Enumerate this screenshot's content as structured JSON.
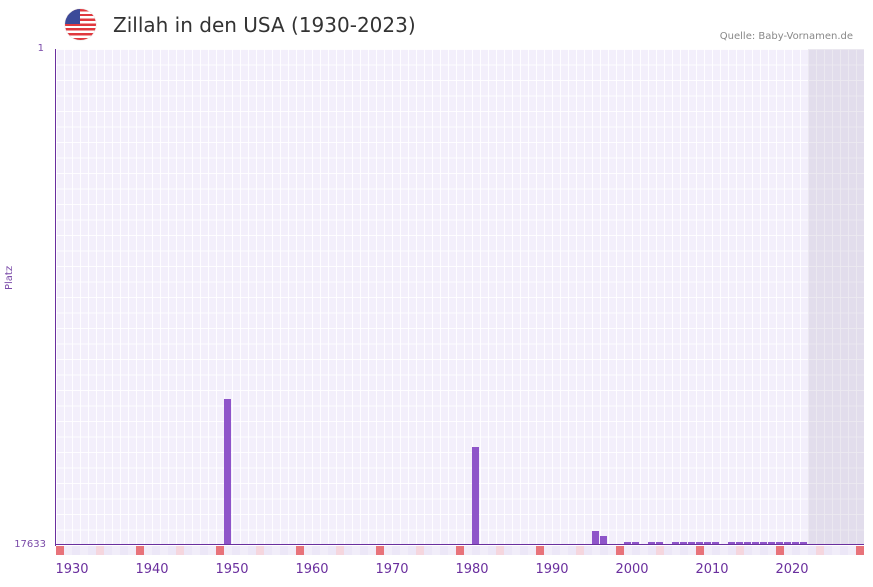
{
  "header": {
    "title": "Zillah in den USA (1930-2023)",
    "source": "Quelle: Baby-Vornamen.de",
    "flag_icon": "us-flag-icon"
  },
  "colors": {
    "bar": "#8e55c9",
    "axis": "#6a2f9e",
    "grid_bg": "#f3effb",
    "marker_decade": "#e8737a",
    "marker_half": "#f5d6de"
  },
  "chart_data": {
    "type": "bar",
    "title": "Zillah in den USA (1930-2023)",
    "xlabel": "",
    "ylabel": "Platz",
    "y_inverted": true,
    "ylim": [
      17633,
      1
    ],
    "yticks": [
      "1",
      "17633"
    ],
    "xticks": [
      "1930",
      "1940",
      "1950",
      "1960",
      "1970",
      "1980",
      "1990",
      "2000",
      "2010",
      "2020"
    ],
    "x_range": [
      1929,
      2029
    ],
    "grid": true,
    "shaded_future_from": 2023,
    "categories": [
      1950,
      1981,
      1996,
      1997,
      2000,
      2001,
      2003,
      2004,
      2006,
      2007,
      2008,
      2009,
      2010,
      2011,
      2013,
      2014,
      2015,
      2016,
      2017,
      2018,
      2019,
      2020,
      2021,
      2022
    ],
    "values": [
      12443,
      14150,
      17134,
      17311,
      17667,
      17667,
      18449,
      18413,
      19200,
      19130,
      18738,
      18382,
      18382,
      18347,
      18774,
      18667,
      18560,
      18418,
      18809,
      18524,
      18382,
      18133,
      18631,
      18453
    ],
    "note": "values are rank positions (Platz) estimated from pixel heights; values beyond 17633 are clamped near the axis"
  },
  "axis": {
    "y_top": "1",
    "y_bottom": "17633",
    "y_title": "Platz",
    "x_labels": [
      "1930",
      "1940",
      "1950",
      "1960",
      "1970",
      "1980",
      "1990",
      "2000",
      "2010",
      "2020"
    ]
  }
}
